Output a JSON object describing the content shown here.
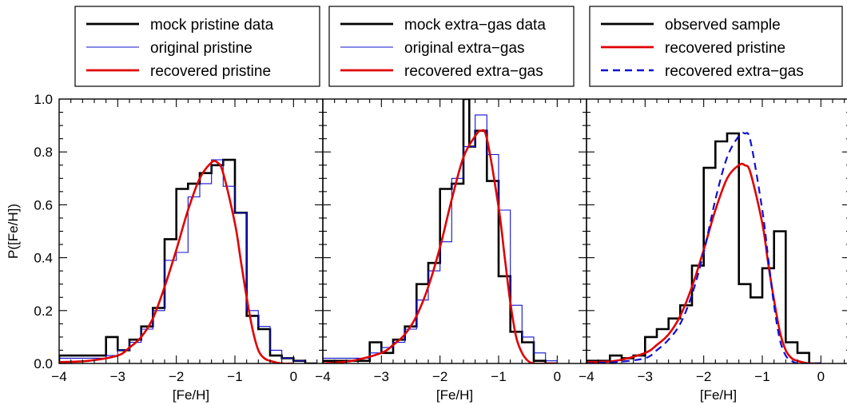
{
  "chart_data": [
    {
      "type": "line",
      "title": "",
      "xlabel": "[Fe/H]",
      "ylabel": "P([Fe/H])",
      "xlim": [
        -4,
        0.5
      ],
      "ylim": [
        0,
        1.0
      ],
      "x_ticks": [
        "−4",
        "−3",
        "−2",
        "−1",
        "0"
      ],
      "y_ticks": [
        "0.0",
        "0.2",
        "0.4",
        "0.6",
        "0.8",
        "1.0"
      ],
      "legend": {
        "placement": "top",
        "entries": [
          {
            "label": "mock pristine data",
            "color": "#000000",
            "style": "solid-thick"
          },
          {
            "label": "original pristine",
            "color": "#1010d0",
            "style": "solid-thin"
          },
          {
            "label": "recovered pristine",
            "color": "#e00000",
            "style": "solid-thick"
          }
        ]
      },
      "series": [
        {
          "name": "mock pristine data",
          "kind": "step",
          "color": "#000000",
          "width": 2.6,
          "edges": [
            -4.0,
            -3.2,
            -3.0,
            -2.8,
            -2.6,
            -2.4,
            -2.2,
            -2.0,
            -1.8,
            -1.6,
            -1.4,
            -1.2,
            -1.0,
            -0.8,
            -0.6,
            -0.4,
            -0.2,
            0.0,
            0.2,
            0.4
          ],
          "values": [
            0.03,
            0.1,
            0.05,
            0.09,
            0.14,
            0.21,
            0.47,
            0.66,
            0.68,
            0.72,
            0.75,
            0.77,
            0.57,
            0.18,
            0.13,
            0.03,
            0.02,
            0.01,
            0.0
          ]
        },
        {
          "name": "original pristine",
          "kind": "step",
          "color": "#1010d0",
          "width": 1.1,
          "edges": [
            -4.0,
            -3.2,
            -3.0,
            -2.8,
            -2.6,
            -2.4,
            -2.2,
            -2.0,
            -1.8,
            -1.6,
            -1.4,
            -1.2,
            -1.0,
            -0.8,
            -0.6,
            -0.4,
            -0.2,
            0.0,
            0.2,
            0.4
          ],
          "values": [
            0.02,
            0.03,
            0.05,
            0.08,
            0.13,
            0.2,
            0.39,
            0.42,
            0.63,
            0.68,
            0.77,
            0.67,
            0.57,
            0.2,
            0.14,
            0.05,
            0.02,
            0.01,
            0.0
          ]
        },
        {
          "name": "recovered pristine",
          "kind": "curve",
          "color": "#e00000",
          "width": 2.6,
          "x": [
            -4.0,
            -3.5,
            -3.0,
            -2.8,
            -2.6,
            -2.4,
            -2.2,
            -2.0,
            -1.8,
            -1.6,
            -1.4,
            -1.3,
            -1.2,
            -1.0,
            -0.9,
            -0.8,
            -0.7,
            -0.6,
            -0.5,
            -0.4,
            -0.2,
            0.0
          ],
          "y": [
            0.005,
            0.01,
            0.03,
            0.06,
            0.1,
            0.17,
            0.29,
            0.43,
            0.58,
            0.7,
            0.76,
            0.76,
            0.72,
            0.53,
            0.39,
            0.25,
            0.13,
            0.05,
            0.02,
            0.01,
            0.0,
            0.0
          ]
        }
      ]
    },
    {
      "type": "line",
      "title": "",
      "xlabel": "[Fe/H]",
      "ylabel": "",
      "xlim": [
        -4,
        0.5
      ],
      "ylim": [
        0,
        1.0
      ],
      "x_ticks": [
        "−4",
        "−3",
        "−2",
        "−1",
        "0"
      ],
      "y_ticks": [],
      "legend": {
        "placement": "top",
        "entries": [
          {
            "label": "mock extra−gas data",
            "color": "#000000",
            "style": "solid-thick"
          },
          {
            "label": "original extra−gas",
            "color": "#1010d0",
            "style": "solid-thin"
          },
          {
            "label": "recovered extra−gas",
            "color": "#e00000",
            "style": "solid-thick"
          }
        ]
      },
      "series": [
        {
          "name": "mock extra−gas data",
          "kind": "step",
          "color": "#000000",
          "width": 2.6,
          "edges": [
            -4.0,
            -3.2,
            -3.0,
            -2.8,
            -2.6,
            -2.4,
            -2.2,
            -2.0,
            -1.8,
            -1.6,
            -1.5,
            -1.4,
            -1.2,
            -1.0,
            -0.8,
            -0.6,
            -0.4,
            -0.2,
            0.0
          ],
          "values": [
            0.01,
            0.08,
            0.04,
            0.09,
            0.14,
            0.3,
            0.38,
            0.66,
            0.68,
            1.0,
            0.82,
            0.88,
            0.69,
            0.33,
            0.12,
            0.08,
            0.01,
            0.0
          ]
        },
        {
          "name": "original extra−gas",
          "kind": "step",
          "color": "#1010d0",
          "width": 1.1,
          "edges": [
            -4.0,
            -3.2,
            -3.0,
            -2.8,
            -2.6,
            -2.4,
            -2.2,
            -2.0,
            -1.8,
            -1.6,
            -1.4,
            -1.2,
            -1.0,
            -0.8,
            -0.6,
            -0.4,
            -0.2,
            0.0
          ],
          "values": [
            0.02,
            0.04,
            0.06,
            0.08,
            0.13,
            0.24,
            0.35,
            0.46,
            0.7,
            0.82,
            0.94,
            0.79,
            0.58,
            0.22,
            0.1,
            0.04,
            0.01
          ]
        },
        {
          "name": "recovered extra−gas",
          "kind": "curve",
          "color": "#e00000",
          "width": 2.6,
          "x": [
            -4.0,
            -3.5,
            -3.0,
            -2.8,
            -2.6,
            -2.4,
            -2.2,
            -2.0,
            -1.8,
            -1.6,
            -1.4,
            -1.3,
            -1.2,
            -1.0,
            -0.9,
            -0.8,
            -0.7,
            -0.6,
            -0.5,
            -0.4,
            -0.2,
            0.0
          ],
          "y": [
            0.0,
            0.01,
            0.04,
            0.07,
            0.11,
            0.18,
            0.29,
            0.44,
            0.62,
            0.78,
            0.86,
            0.88,
            0.85,
            0.59,
            0.41,
            0.23,
            0.1,
            0.04,
            0.01,
            0.0,
            0.0,
            0.0
          ]
        }
      ]
    },
    {
      "type": "line",
      "title": "",
      "xlabel": "[Fe/H]",
      "ylabel": "",
      "xlim": [
        -4,
        0.5
      ],
      "ylim": [
        0,
        1.0
      ],
      "x_ticks": [
        "−4",
        "−3",
        "−2",
        "−1",
        "0"
      ],
      "y_ticks": [],
      "legend": {
        "placement": "top",
        "entries": [
          {
            "label": "observed sample",
            "color": "#000000",
            "style": "solid-thick"
          },
          {
            "label": "recovered pristine",
            "color": "#e00000",
            "style": "solid-thick"
          },
          {
            "label": "recovered extra−gas",
            "color": "#1010d0",
            "style": "dashed"
          }
        ]
      },
      "series": [
        {
          "name": "observed sample",
          "kind": "step",
          "color": "#000000",
          "width": 2.6,
          "edges": [
            -4.0,
            -3.6,
            -3.4,
            -3.2,
            -3.0,
            -2.8,
            -2.6,
            -2.4,
            -2.2,
            -2.0,
            -1.8,
            -1.6,
            -1.4,
            -1.2,
            -1.0,
            -0.8,
            -0.6,
            -0.4,
            -0.2,
            0.0
          ],
          "values": [
            0.01,
            0.03,
            0.02,
            0.03,
            0.1,
            0.13,
            0.17,
            0.22,
            0.37,
            0.74,
            0.84,
            0.87,
            0.3,
            0.25,
            0.36,
            0.5,
            0.08,
            0.04,
            0.0
          ]
        },
        {
          "name": "recovered pristine",
          "kind": "curve",
          "color": "#e00000",
          "width": 2.6,
          "x": [
            -4.0,
            -3.5,
            -3.0,
            -2.8,
            -2.6,
            -2.4,
            -2.2,
            -2.0,
            -1.8,
            -1.6,
            -1.4,
            -1.3,
            -1.2,
            -1.0,
            -0.9,
            -0.8,
            -0.7,
            -0.6,
            -0.5,
            -0.4,
            -0.2,
            0.0
          ],
          "y": [
            0.005,
            0.01,
            0.04,
            0.07,
            0.11,
            0.18,
            0.29,
            0.43,
            0.58,
            0.7,
            0.75,
            0.75,
            0.72,
            0.53,
            0.38,
            0.24,
            0.12,
            0.05,
            0.02,
            0.01,
            0.0,
            0.0
          ]
        },
        {
          "name": "recovered extra−gas",
          "kind": "curve",
          "dashed": true,
          "color": "#1010d0",
          "width": 2.2,
          "x": [
            -4.0,
            -3.5,
            -3.0,
            -2.8,
            -2.6,
            -2.4,
            -2.2,
            -2.0,
            -1.8,
            -1.6,
            -1.4,
            -1.3,
            -1.2,
            -1.0,
            -0.9,
            -0.8,
            -0.7,
            -0.6,
            -0.5,
            -0.4,
            -0.2,
            0.0
          ],
          "y": [
            0.0,
            0.005,
            0.02,
            0.05,
            0.09,
            0.15,
            0.26,
            0.42,
            0.62,
            0.78,
            0.86,
            0.87,
            0.84,
            0.58,
            0.4,
            0.22,
            0.09,
            0.03,
            0.01,
            0.0,
            0.0,
            0.0
          ]
        }
      ]
    }
  ]
}
